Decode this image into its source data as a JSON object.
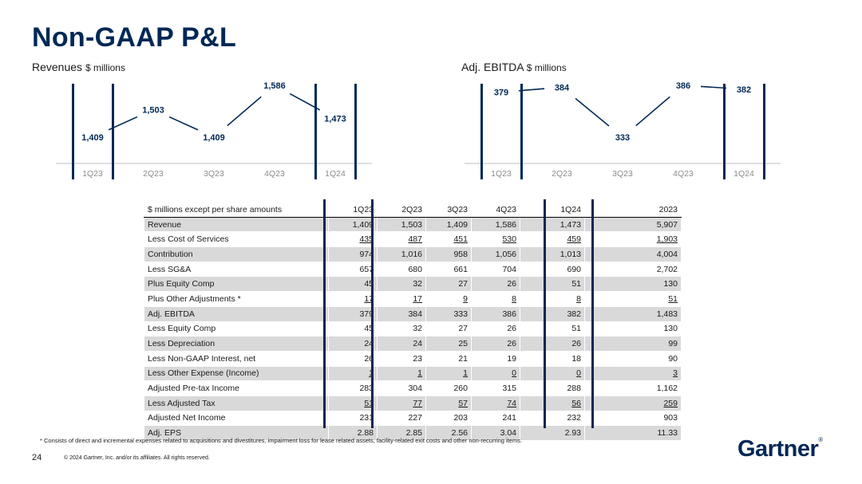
{
  "page": {
    "title": "Non-GAAP P&L",
    "footnote": "* Consists of direct and incremental expenses related to acquisitions and divestitures, impairment loss for lease related assets, facility-related exit costs and other non-recurring items.",
    "page_number": "24",
    "copyright": "© 2024 Gartner, Inc. and/or its affiliates. All rights reserved.",
    "logo": "Gartner",
    "logo_mark": "®"
  },
  "colors": {
    "brand": "#002856",
    "axis": "#8c8c8c",
    "shade": "#d9d9d9"
  },
  "chart_data": [
    {
      "type": "line",
      "title": "Revenues",
      "unit": "$ millions",
      "categories": [
        "1Q23",
        "2Q23",
        "3Q23",
        "4Q23",
        "1Q24"
      ],
      "values": [
        1409,
        1503,
        1409,
        1586,
        1473
      ],
      "labels": [
        "1,409",
        "1,503",
        "1,409",
        "1,586",
        "1,473"
      ],
      "highlight": [
        "1Q23",
        "1Q24"
      ]
    },
    {
      "type": "line",
      "title": "Adj. EBITDA",
      "unit": "$ millions",
      "categories": [
        "1Q23",
        "2Q23",
        "3Q23",
        "4Q23",
        "1Q24"
      ],
      "values": [
        379,
        384,
        333,
        386,
        382
      ],
      "labels": [
        "379",
        "384",
        "333",
        "386",
        "382"
      ],
      "highlight": [
        "1Q23",
        "1Q24"
      ]
    },
    {
      "type": "table",
      "header": [
        "$ millions except per share amounts",
        "1Q23",
        "2Q23",
        "3Q23",
        "4Q23",
        "1Q24",
        "2023"
      ],
      "rows": [
        {
          "label": "Revenue",
          "cells": [
            "1,409",
            "1,503",
            "1,409",
            "1,586",
            "1,473",
            "5,907"
          ],
          "underline": false
        },
        {
          "label": "Less Cost of Services",
          "cells": [
            "435",
            "487",
            "451",
            "530",
            "459",
            "1,903"
          ],
          "underline": true
        },
        {
          "label": "Contribution",
          "cells": [
            "974",
            "1,016",
            "958",
            "1,056",
            "1,013",
            "4,004"
          ],
          "underline": false
        },
        {
          "label": "Less SG&A",
          "cells": [
            "657",
            "680",
            "661",
            "704",
            "690",
            "2,702"
          ],
          "underline": false
        },
        {
          "label": "Plus Equity Comp",
          "cells": [
            "45",
            "32",
            "27",
            "26",
            "51",
            "130"
          ],
          "underline": false
        },
        {
          "label": "Plus Other Adjustments *",
          "cells": [
            "17",
            "17",
            "9",
            "8",
            "8",
            "51"
          ],
          "underline": true
        },
        {
          "label": "Adj. EBITDA",
          "cells": [
            "379",
            "384",
            "333",
            "386",
            "382",
            "1,483"
          ],
          "underline": false
        },
        {
          "label": "Less Equity Comp",
          "cells": [
            "45",
            "32",
            "27",
            "26",
            "51",
            "130"
          ],
          "underline": false
        },
        {
          "label": "Less Depreciation",
          "cells": [
            "24",
            "24",
            "25",
            "26",
            "26",
            "99"
          ],
          "underline": false
        },
        {
          "label": "Less Non-GAAP Interest, net",
          "cells": [
            "26",
            "23",
            "21",
            "19",
            "18",
            "90"
          ],
          "underline": false
        },
        {
          "label": "Less Other Expense (Income)",
          "cells": [
            "1",
            "1",
            "1",
            "0",
            "0",
            "3"
          ],
          "underline": true
        },
        {
          "label": "Adjusted Pre-tax Income",
          "cells": [
            "283",
            "304",
            "260",
            "315",
            "288",
            "1,162"
          ],
          "underline": false
        },
        {
          "label": "Less Adjusted Tax",
          "cells": [
            "51",
            "77",
            "57",
            "74",
            "56",
            "259"
          ],
          "underline": true
        },
        {
          "label": "Adjusted Net Income",
          "cells": [
            "231",
            "227",
            "203",
            "241",
            "232",
            "903"
          ],
          "underline": false
        },
        {
          "label": "Adj. EPS",
          "cells": [
            "2.88",
            "2.85",
            "2.56",
            "3.04",
            "2.93",
            "11.33"
          ],
          "underline": false
        }
      ]
    }
  ]
}
